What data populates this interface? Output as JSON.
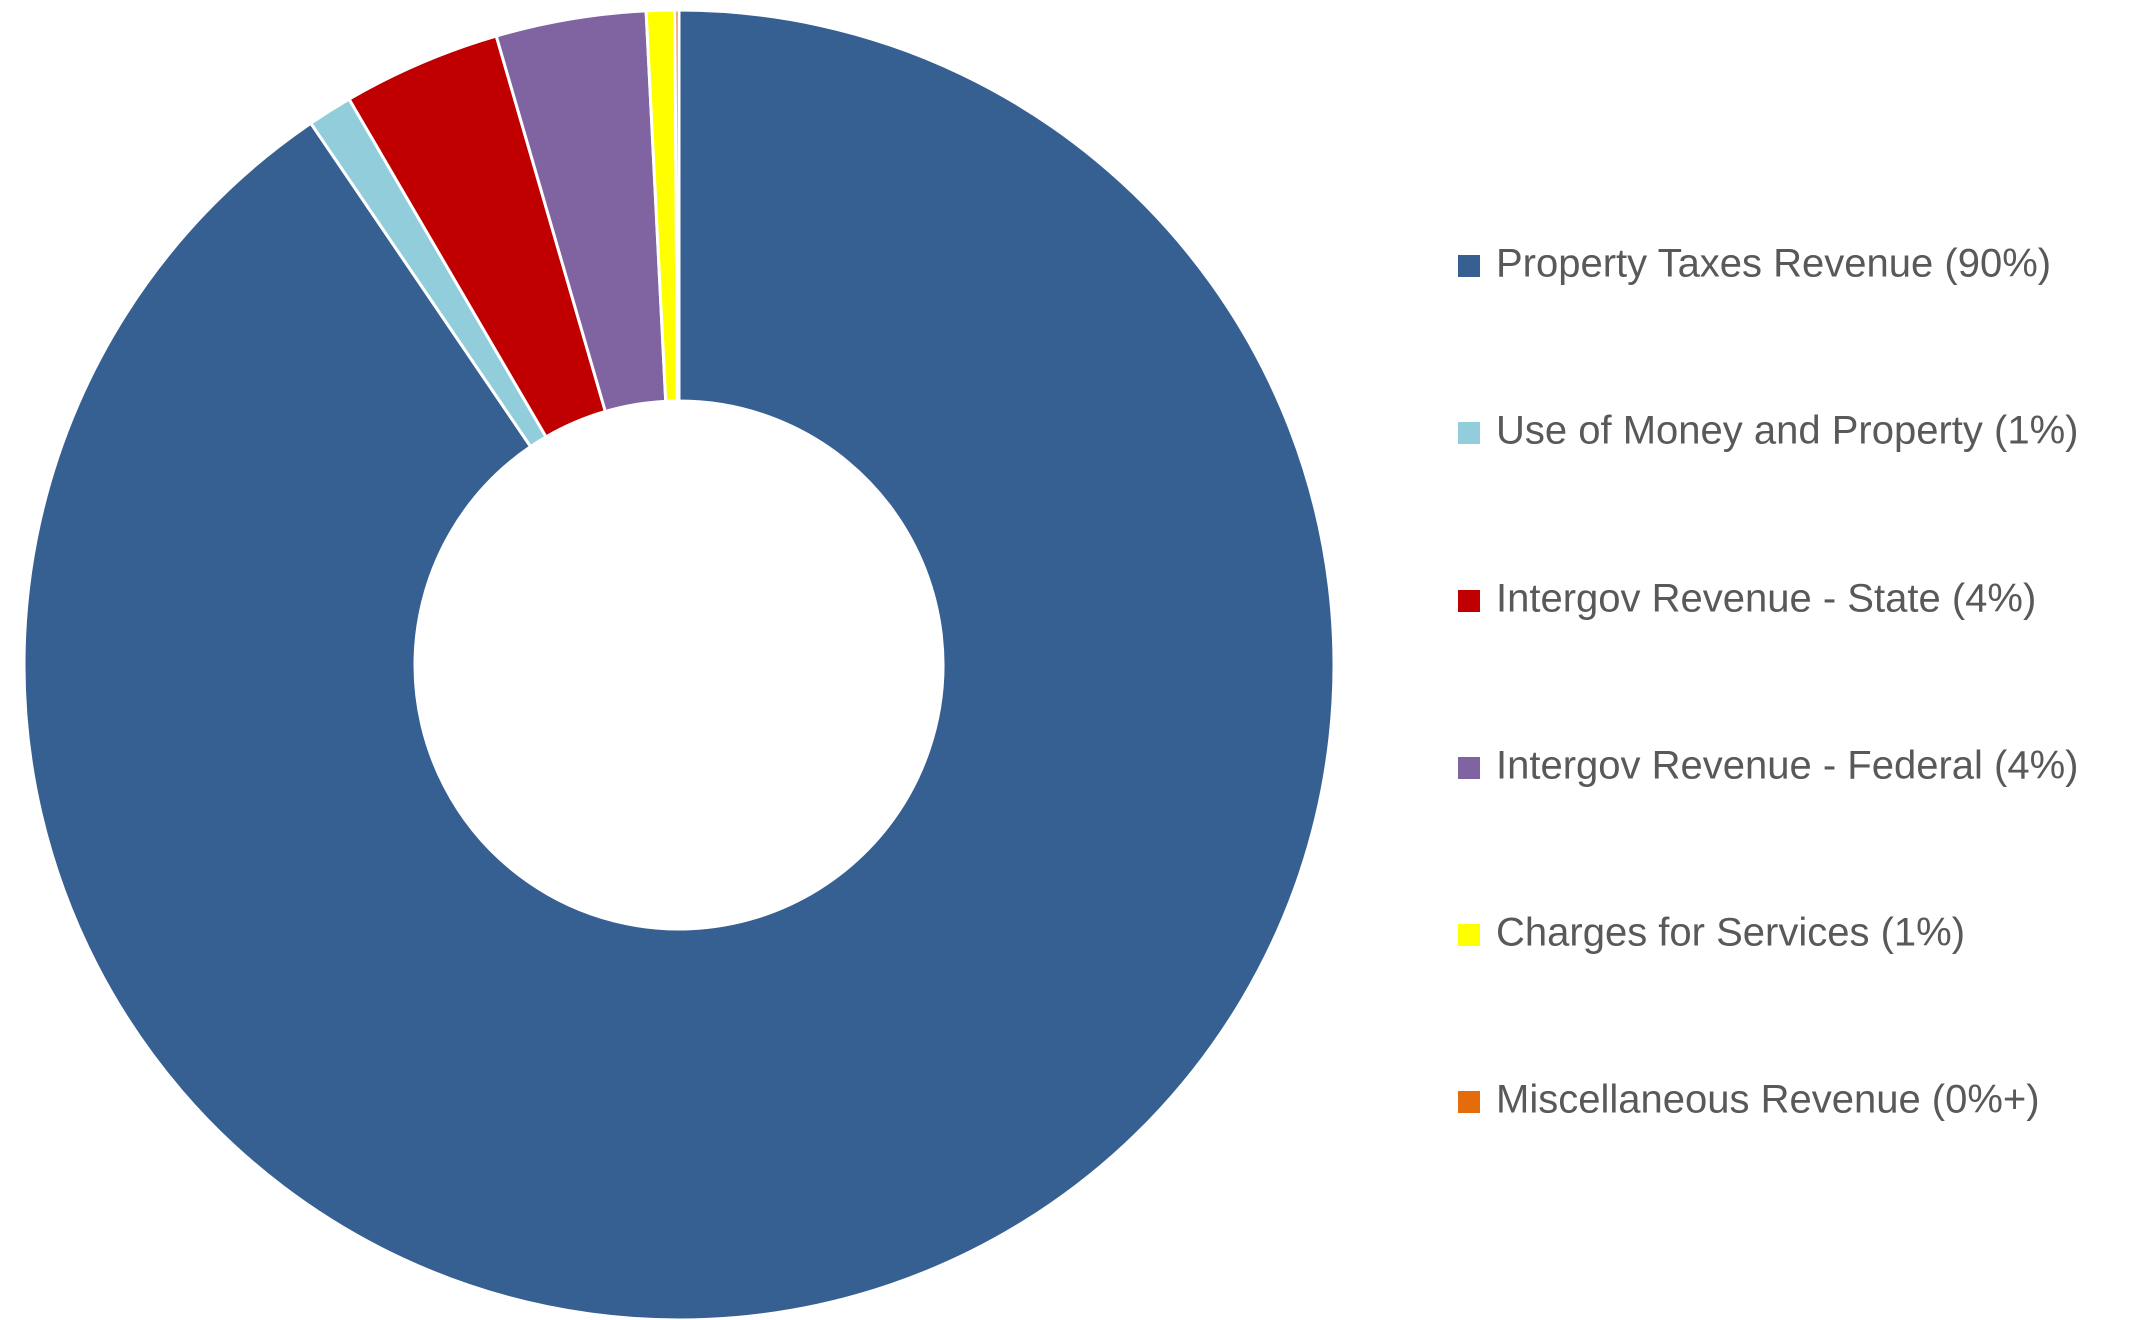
{
  "chart_data": {
    "type": "donut",
    "categories": [
      "Property Taxes Revenue (90%)",
      "Use of Money and Property (1%)",
      "Intergov Revenue - State (4%)",
      "Intergov Revenue - Federal (4%)",
      "Charges for Services (1%)",
      "Miscellaneous Revenue (0%+)"
    ],
    "values": [
      90.5,
      1.1,
      3.9,
      3.7,
      0.7,
      0.1
    ],
    "colors": [
      "#376092",
      "#92cddc",
      "#c00000",
      "#8064a2",
      "#ffff00",
      "#e46c0a"
    ],
    "legend": "right"
  }
}
